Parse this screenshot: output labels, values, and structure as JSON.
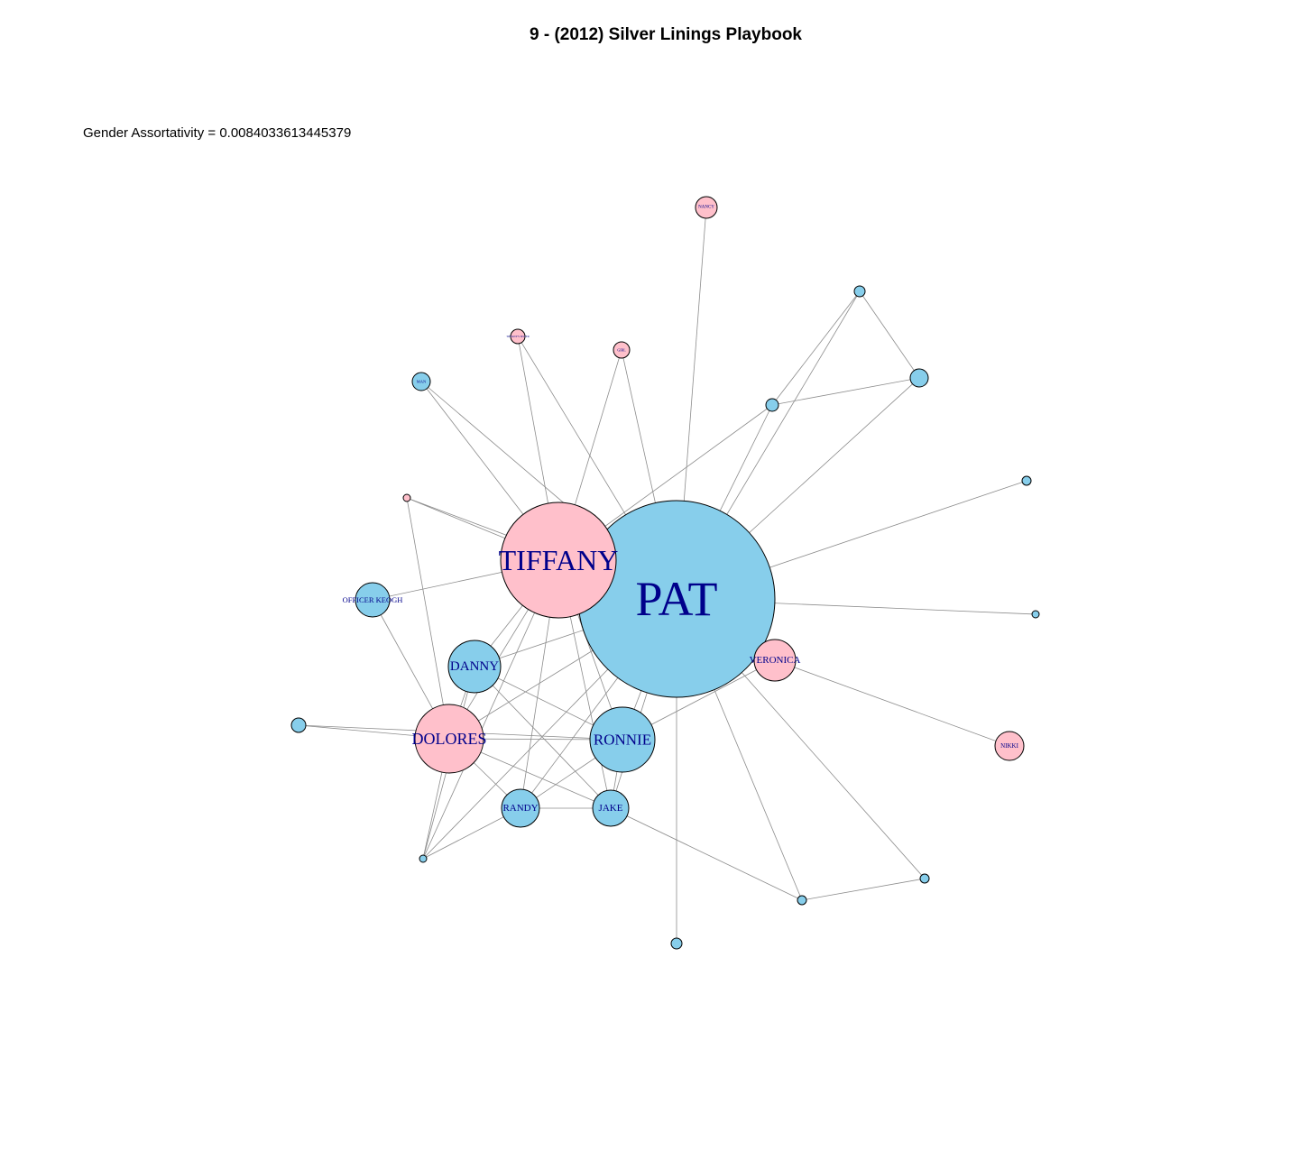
{
  "title": "9 - (2012) Silver Linings Playbook",
  "subtitle": "Gender Assortativity = 0.0084033613445379",
  "colors": {
    "male": "#87CEEB",
    "female": "#FFC0CB",
    "edge": "#8C8C8C",
    "label": "#00008B",
    "outline": "#000000"
  },
  "nodes": [
    {
      "id": "PAT",
      "label": "PAT",
      "gender": "male"
    },
    {
      "id": "TIFFANY",
      "label": "TIFFANY",
      "gender": "female"
    },
    {
      "id": "RONNIE",
      "label": "RONNIE",
      "gender": "male"
    },
    {
      "id": "DOLORES",
      "label": "DOLORES",
      "gender": "female"
    },
    {
      "id": "DANNY",
      "label": "DANNY",
      "gender": "male"
    },
    {
      "id": "VERONICA",
      "label": "VERONICA",
      "gender": "female"
    },
    {
      "id": "OFFICER KEOGH",
      "label": "OFFICER KEOGH",
      "gender": "male"
    },
    {
      "id": "RANDY",
      "label": "RANDY",
      "gender": "male"
    },
    {
      "id": "JAKE",
      "label": "JAKE",
      "gender": "male"
    },
    {
      "id": "NANCY",
      "label": "NANCY",
      "gender": "female"
    },
    {
      "id": "NIKKI",
      "label": "NIKKI",
      "gender": "female"
    },
    {
      "id": "TIFF_SISTER",
      "label": "TIFFANY'S SISTER",
      "gender": "female"
    },
    {
      "id": "F_SMALL2",
      "label": "GIRL",
      "gender": "female"
    },
    {
      "id": "F_TINY",
      "label": "",
      "gender": "female"
    },
    {
      "id": "MAN",
      "label": "MAN",
      "gender": "male"
    },
    {
      "id": "M_TOPRIGHT",
      "label": "",
      "gender": "male"
    },
    {
      "id": "M_RIGHT1",
      "label": "",
      "gender": "male"
    },
    {
      "id": "M_MID",
      "label": "",
      "gender": "male"
    },
    {
      "id": "M_E1",
      "label": "",
      "gender": "male"
    },
    {
      "id": "M_E2",
      "label": "",
      "gender": "male"
    },
    {
      "id": "M_LEFT",
      "label": "",
      "gender": "male"
    },
    {
      "id": "M_BL",
      "label": "",
      "gender": "male"
    },
    {
      "id": "M_B",
      "label": "",
      "gender": "male"
    },
    {
      "id": "M_BR1",
      "label": "",
      "gender": "male"
    },
    {
      "id": "M_BR2",
      "label": "",
      "gender": "male"
    }
  ],
  "edges": [
    [
      "TIFFANY",
      "PAT"
    ],
    [
      "PAT",
      "NANCY"
    ],
    [
      "PAT",
      "M_E1"
    ],
    [
      "PAT",
      "M_E2"
    ],
    [
      "PAT",
      "VERONICA"
    ],
    [
      "PAT",
      "M_RIGHT1"
    ],
    [
      "PAT",
      "M_MID"
    ],
    [
      "PAT",
      "M_TOPRIGHT"
    ],
    [
      "PAT",
      "F_SMALL2"
    ],
    [
      "PAT",
      "TIFF_SISTER"
    ],
    [
      "PAT",
      "MAN"
    ],
    [
      "PAT",
      "F_TINY"
    ],
    [
      "PAT",
      "DANNY"
    ],
    [
      "PAT",
      "DOLORES"
    ],
    [
      "PAT",
      "RONNIE"
    ],
    [
      "PAT",
      "RANDY"
    ],
    [
      "PAT",
      "JAKE"
    ],
    [
      "PAT",
      "M_B"
    ],
    [
      "PAT",
      "M_BR1"
    ],
    [
      "PAT",
      "M_BR2"
    ],
    [
      "PAT",
      "M_BL"
    ],
    [
      "TIFFANY",
      "F_TINY"
    ],
    [
      "TIFFANY",
      "TIFF_SISTER"
    ],
    [
      "TIFFANY",
      "F_SMALL2"
    ],
    [
      "TIFFANY",
      "MAN"
    ],
    [
      "TIFFANY",
      "OFFICER KEOGH"
    ],
    [
      "TIFFANY",
      "DANNY"
    ],
    [
      "TIFFANY",
      "RANDY"
    ],
    [
      "TIFFANY",
      "JAKE"
    ],
    [
      "TIFFANY",
      "RONNIE"
    ],
    [
      "TIFFANY",
      "DOLORES"
    ],
    [
      "TIFFANY",
      "M_MID"
    ],
    [
      "TIFFANY",
      "M_BL"
    ],
    [
      "RONNIE",
      "VERONICA"
    ],
    [
      "RONNIE",
      "DOLORES"
    ],
    [
      "RONNIE",
      "DANNY"
    ],
    [
      "RONNIE",
      "RANDY"
    ],
    [
      "RONNIE",
      "JAKE"
    ],
    [
      "RONNIE",
      "M_LEFT"
    ],
    [
      "DOLORES",
      "DANNY"
    ],
    [
      "DOLORES",
      "JAKE"
    ],
    [
      "DOLORES",
      "RANDY"
    ],
    [
      "DOLORES",
      "OFFICER KEOGH"
    ],
    [
      "DOLORES",
      "M_LEFT"
    ],
    [
      "DOLORES",
      "M_BL"
    ],
    [
      "DOLORES",
      "F_TINY"
    ],
    [
      "DANNY",
      "JAKE"
    ],
    [
      "DANNY",
      "M_BL"
    ],
    [
      "RANDY",
      "JAKE"
    ],
    [
      "RANDY",
      "M_BL"
    ],
    [
      "JAKE",
      "M_BR1"
    ],
    [
      "VERONICA",
      "NIKKI"
    ],
    [
      "M_MID",
      "M_RIGHT1"
    ],
    [
      "M_TOPRIGHT",
      "M_RIGHT1"
    ],
    [
      "M_TOPRIGHT",
      "M_MID"
    ],
    [
      "M_BR1",
      "M_BR2"
    ]
  ]
}
